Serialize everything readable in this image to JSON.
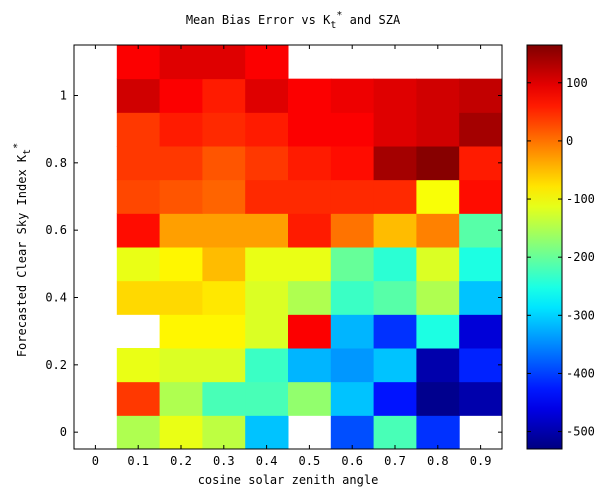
{
  "chart_data": {
    "type": "heatmap",
    "title": "Mean Bias Error vs K",
    "title_sub": "t",
    "title_sup": "*",
    "title_tail": " and SZA",
    "xlabel": "cosine solar zenith angle",
    "ylabel": "Forecasted Clear Sky Index K",
    "ylabel_sub": "t",
    "ylabel_sup": "*",
    "xlim": [
      -0.05,
      0.95
    ],
    "ylim": [
      -0.05,
      1.15
    ],
    "x_ticks": [
      "0",
      "0.1",
      "0.2",
      "0.3",
      "0.4",
      "0.5",
      "0.6",
      "0.7",
      "0.8",
      "0.9"
    ],
    "y_ticks": [
      "0",
      "0.2",
      "0.4",
      "0.6",
      "0.8",
      "1"
    ],
    "x_centers": [
      0,
      0.1,
      0.2,
      0.3,
      0.4,
      0.5,
      0.6,
      0.7,
      0.8,
      0.9
    ],
    "y_centers": [
      0,
      0.1,
      0.2,
      0.3,
      0.4,
      0.5,
      0.6,
      0.7,
      0.8,
      0.9,
      1.0,
      1.1
    ],
    "values": [
      [
        null,
        -150,
        -110,
        -140,
        -310,
        null,
        -390,
        -220,
        -410,
        null
      ],
      [
        null,
        40,
        -150,
        -220,
        -220,
        -170,
        -310,
        -430,
        -520,
        -500
      ],
      [
        null,
        -110,
        -120,
        -120,
        -230,
        -320,
        -340,
        -310,
        -500,
        -420
      ],
      [
        null,
        null,
        -90,
        -90,
        -120,
        80,
        -320,
        -410,
        -250,
        -470
      ],
      [
        null,
        -70,
        -70,
        -80,
        -120,
        -150,
        -230,
        -210,
        -150,
        -310
      ],
      [
        null,
        -110,
        -90,
        -50,
        -110,
        -110,
        -200,
        -240,
        -120,
        -250
      ],
      [
        null,
        70,
        -30,
        -30,
        -30,
        60,
        0,
        -50,
        -10,
        -210
      ],
      [
        null,
        30,
        20,
        10,
        50,
        50,
        50,
        50,
        -100,
        70
      ],
      [
        null,
        40,
        40,
        20,
        40,
        60,
        70,
        140,
        160,
        60
      ],
      [
        null,
        40,
        60,
        50,
        60,
        80,
        80,
        100,
        110,
        140
      ],
      [
        null,
        110,
        80,
        60,
        100,
        80,
        90,
        100,
        110,
        120
      ],
      [
        null,
        80,
        100,
        100,
        80,
        null,
        null,
        null,
        null,
        null
      ]
    ],
    "colorbar": {
      "range": [
        -530,
        165
      ],
      "ticks": [
        -500,
        -400,
        -300,
        -200,
        -100,
        0,
        100
      ],
      "tick_labels": [
        "-500",
        "-400",
        "-300",
        "-200",
        "-100",
        "0",
        "100"
      ],
      "colormap": "jet"
    },
    "grid": false
  }
}
